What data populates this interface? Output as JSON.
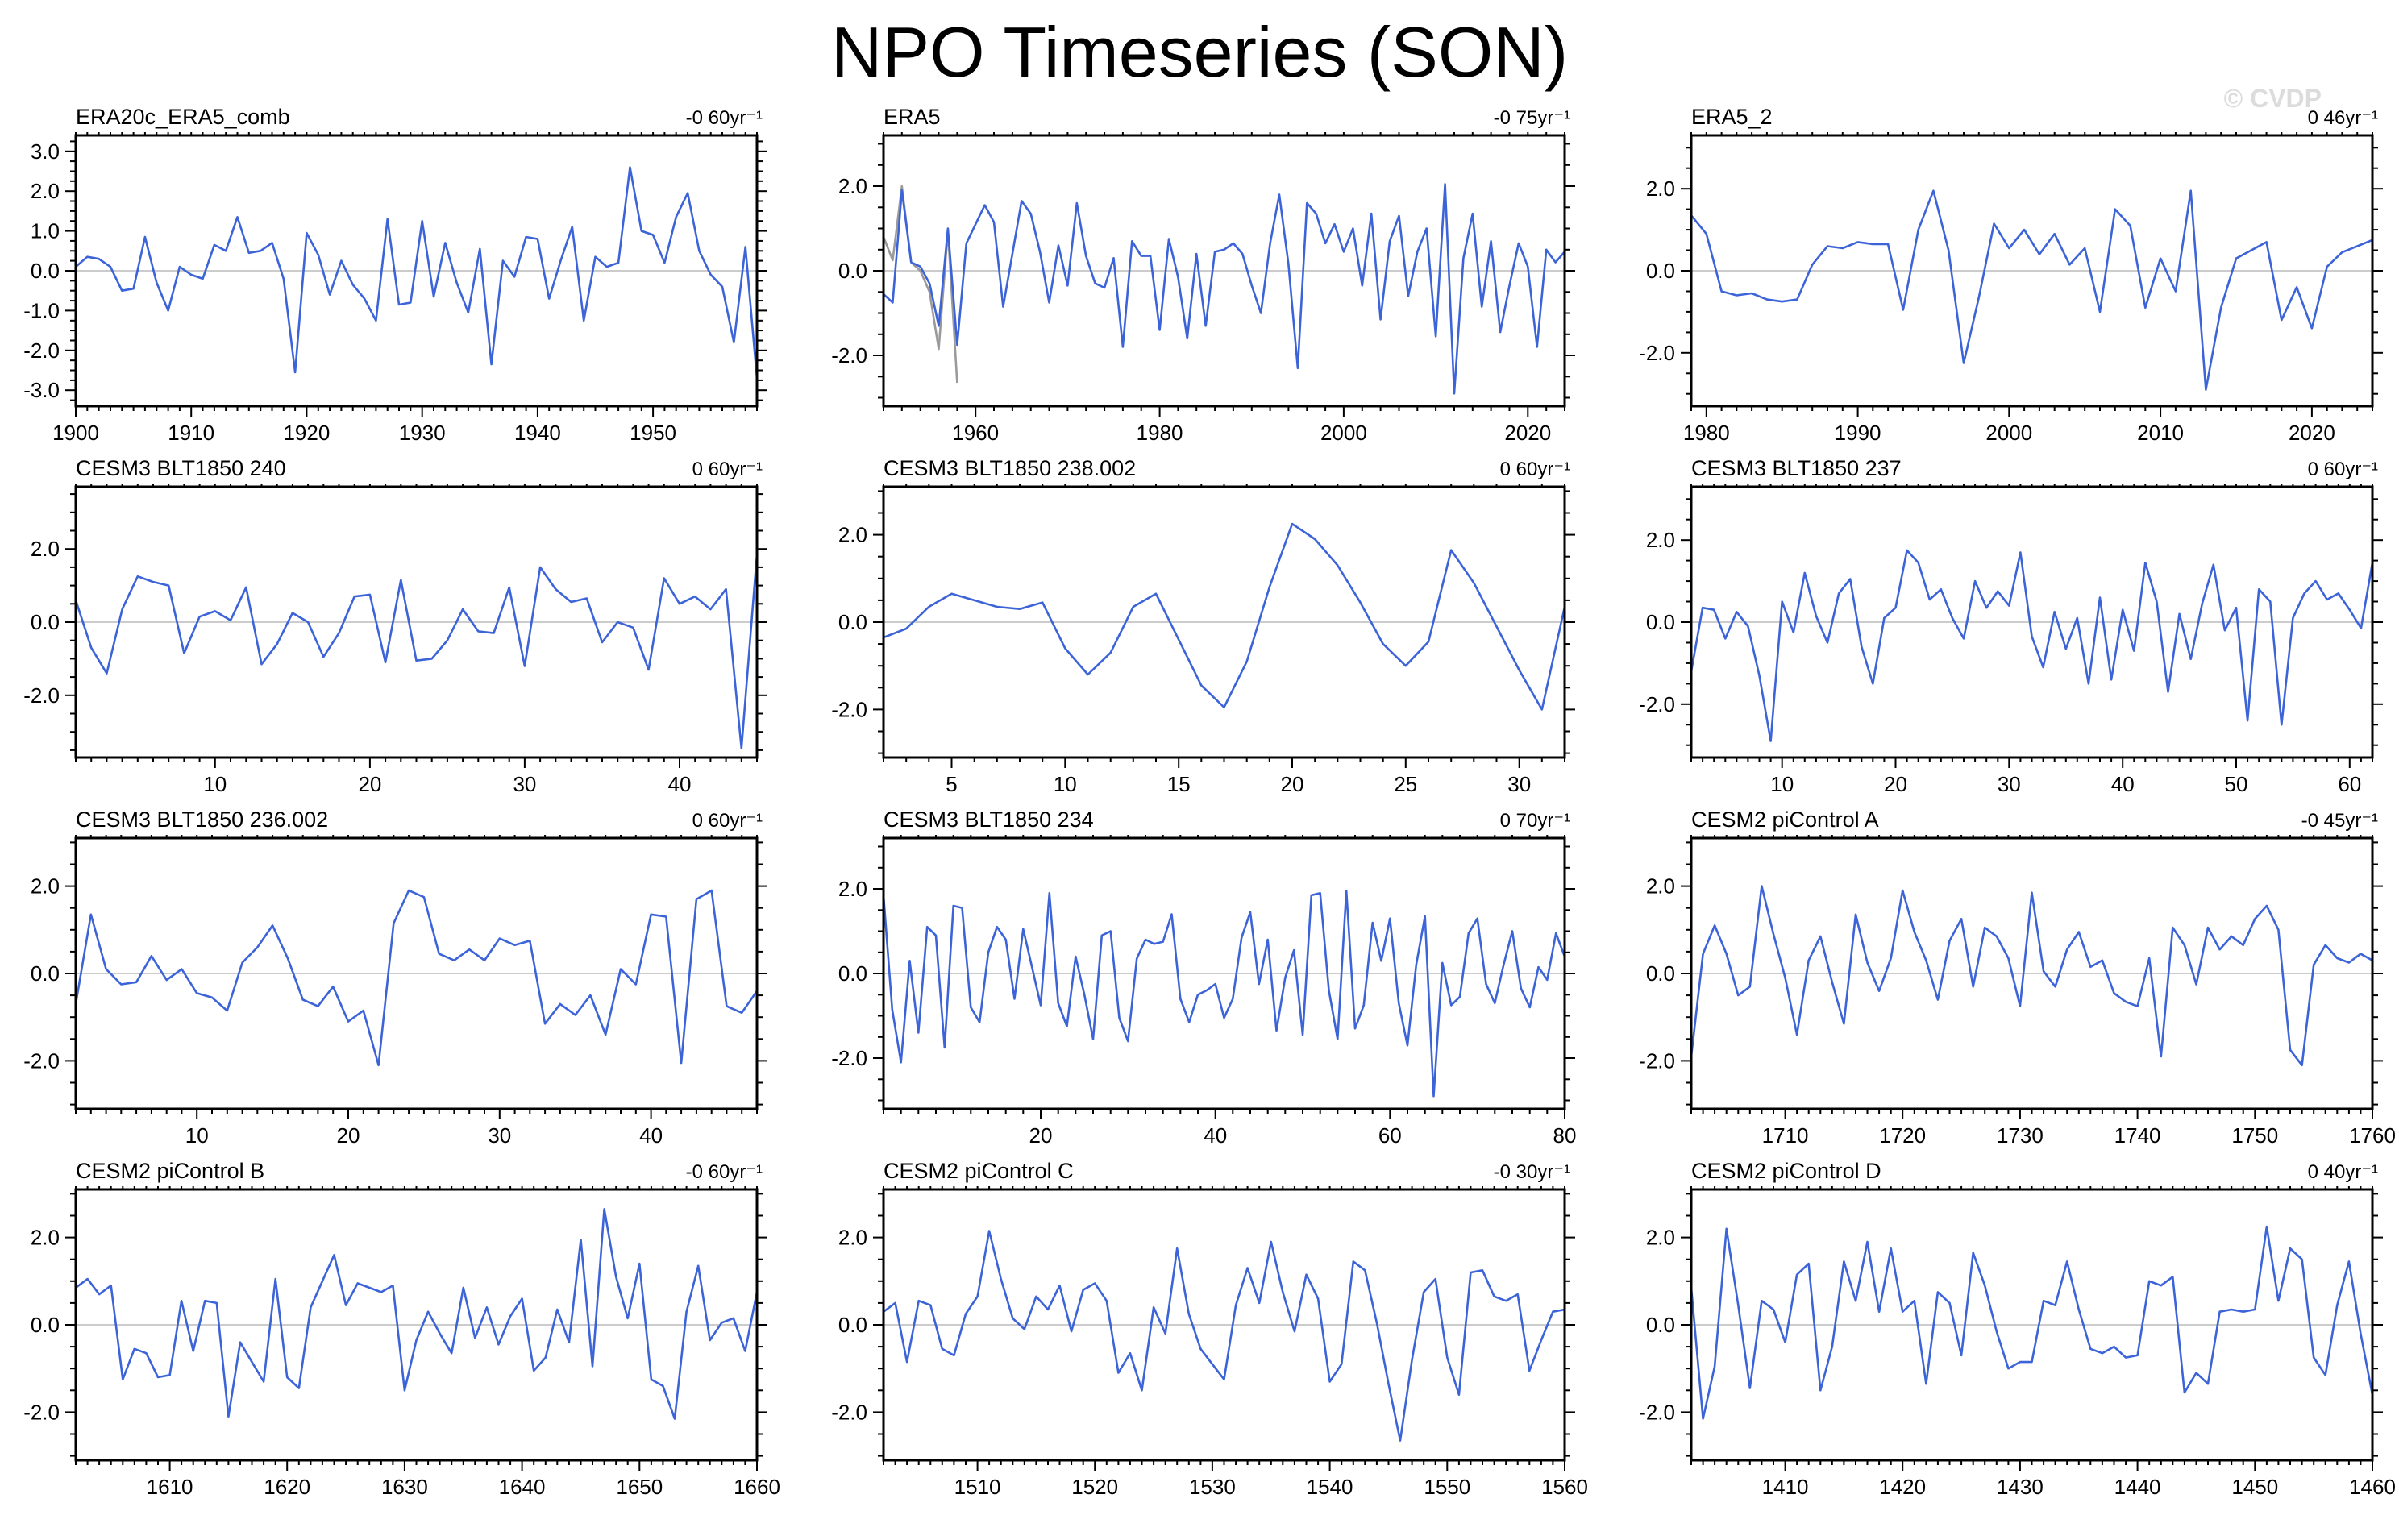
{
  "page": {
    "title": "NPO Timeseries (SON)",
    "copyright": "© CVDP"
  },
  "chart_data": {
    "type": "line",
    "title": "NPO Timeseries (SON)",
    "layout": {
      "rows": 4,
      "cols": 3,
      "grid": false,
      "legend": "none",
      "line_color": "#3c64d8",
      "secondary_line_color": "#9a9a9a",
      "zero_line_color": "#cccccc",
      "frame_color": "#000000",
      "tick_label_color": "#000000"
    },
    "panels": [
      {
        "title": "ERA20c_ERA5_comb",
        "trend_label": "-0 60yr⁻¹",
        "x_start": 1900,
        "x_major": 10,
        "x_minor": 1,
        "xticks": [
          1900,
          1910,
          1920,
          1930,
          1940,
          1950
        ],
        "ylim": [
          -3.4,
          3.4
        ],
        "y_major": 1.0,
        "y_minor": 0.25,
        "yticks": [
          -3.0,
          -2.0,
          -1.0,
          0.0,
          1.0,
          2.0,
          3.0
        ],
        "values": [
          0.1,
          0.35,
          0.3,
          0.1,
          -0.5,
          -0.45,
          0.85,
          -0.3,
          -1.0,
          0.1,
          -0.1,
          -0.2,
          0.65,
          0.5,
          1.35,
          0.45,
          0.5,
          0.7,
          -0.2,
          -2.55,
          0.95,
          0.4,
          -0.6,
          0.25,
          -0.35,
          -0.7,
          -1.25,
          1.3,
          -0.85,
          -0.8,
          1.25,
          -0.65,
          0.7,
          -0.3,
          -1.05,
          0.55,
          -2.35,
          0.25,
          -0.15,
          0.85,
          0.8,
          -0.7,
          0.25,
          1.1,
          -1.25,
          0.35,
          0.1,
          0.2,
          2.6,
          1.0,
          0.9,
          0.2,
          1.35,
          1.95,
          0.5,
          -0.1,
          -0.4,
          -1.8,
          0.6,
          -2.7
        ]
      },
      {
        "title": "ERA5",
        "trend_label": "-0 75yr⁻¹",
        "x_start": 1950,
        "x_major": 20,
        "x_minor": 2,
        "xticks": [
          1960,
          1980,
          2000,
          2020
        ],
        "ylim": [
          -3.2,
          3.2
        ],
        "y_major": 2.0,
        "y_minor": 0.5,
        "yticks": [
          -2.0,
          0.0,
          2.0
        ],
        "values": [
          -0.55,
          -0.75,
          1.9,
          0.2,
          0.1,
          -0.3,
          -1.3,
          1.0,
          -1.75,
          0.65,
          1.1,
          1.55,
          1.15,
          -0.85,
          0.4,
          1.65,
          1.35,
          0.45,
          -0.75,
          0.6,
          -0.35,
          1.6,
          0.35,
          -0.3,
          -0.4,
          0.3,
          -1.8,
          0.7,
          0.35,
          0.35,
          -1.4,
          0.75,
          -0.15,
          -1.6,
          0.4,
          -1.3,
          0.45,
          0.5,
          0.65,
          0.4,
          -0.35,
          -1.0,
          0.65,
          1.8,
          0.15,
          -2.3,
          1.6,
          1.35,
          0.65,
          1.1,
          0.45,
          1.0,
          -0.35,
          1.35,
          -1.15,
          0.7,
          1.3,
          -0.6,
          0.45,
          1.0,
          -1.55,
          2.05,
          -2.9,
          0.3,
          1.35,
          -0.85,
          0.7,
          -1.45,
          -0.35,
          0.65,
          0.1,
          -1.8,
          0.5,
          0.2,
          0.45
        ],
        "secondary": {
          "name": "early-record-gray",
          "x_start": 1950,
          "values": [
            0.8,
            0.25,
            2.0,
            0.2,
            0.0,
            -0.5,
            -1.85,
            0.95,
            -2.65
          ]
        }
      },
      {
        "title": "ERA5_2",
        "trend_label": "0 46yr⁻¹",
        "x_start": 1979,
        "x_major": 10,
        "x_minor": 1,
        "xticks": [
          1980,
          1990,
          2000,
          2010,
          2020
        ],
        "ylim": [
          -3.3,
          3.3
        ],
        "y_major": 2.0,
        "y_minor": 0.5,
        "yticks": [
          -2.0,
          0.0,
          2.0
        ],
        "values": [
          1.35,
          0.9,
          -0.5,
          -0.6,
          -0.55,
          -0.7,
          -0.75,
          -0.7,
          0.15,
          0.6,
          0.55,
          0.7,
          0.65,
          0.65,
          -0.95,
          1.0,
          1.95,
          0.5,
          -2.25,
          -0.65,
          1.15,
          0.55,
          1.0,
          0.4,
          0.9,
          0.15,
          0.55,
          -1.0,
          1.5,
          1.1,
          -0.9,
          0.3,
          -0.5,
          1.95,
          -2.9,
          -0.9,
          0.3,
          0.5,
          0.7,
          -1.2,
          -0.4,
          -1.4,
          0.1,
          0.45,
          0.6,
          0.75
        ]
      },
      {
        "title": "CESM3 BLT1850 240",
        "trend_label": "0 60yr⁻¹",
        "x_start": 1,
        "x_major": 10,
        "x_minor": 1,
        "xticks": [
          10,
          20,
          30,
          40
        ],
        "ylim": [
          -3.7,
          3.7
        ],
        "y_major": 2.0,
        "y_minor": 0.5,
        "yticks": [
          -2.0,
          0.0,
          2.0
        ],
        "values": [
          0.6,
          -0.7,
          -1.4,
          0.35,
          1.25,
          1.1,
          1.0,
          -0.85,
          0.15,
          0.3,
          0.05,
          0.95,
          -1.15,
          -0.6,
          0.25,
          0.0,
          -0.95,
          -0.3,
          0.7,
          0.75,
          -1.1,
          1.15,
          -1.05,
          -1.0,
          -0.5,
          0.35,
          -0.25,
          -0.3,
          0.95,
          -1.2,
          1.5,
          0.9,
          0.55,
          0.65,
          -0.55,
          0.0,
          -0.15,
          -1.3,
          1.2,
          0.5,
          0.7,
          0.35,
          0.9,
          -3.45,
          1.85
        ]
      },
      {
        "title": "CESM3 BLT1850 238.002",
        "trend_label": "0 60yr⁻¹",
        "x_start": 2,
        "x_major": 5,
        "x_minor": 1,
        "xticks": [
          5,
          10,
          15,
          20,
          25,
          30
        ],
        "ylim": [
          -3.1,
          3.1
        ],
        "y_major": 2.0,
        "y_minor": 0.5,
        "yticks": [
          -2.0,
          0.0,
          2.0
        ],
        "values": [
          -0.35,
          -0.15,
          0.35,
          0.65,
          0.5,
          0.35,
          0.3,
          0.45,
          -0.6,
          -1.2,
          -0.7,
          0.35,
          0.65,
          -0.4,
          -1.45,
          -1.95,
          -0.9,
          0.8,
          2.25,
          1.9,
          1.3,
          0.45,
          -0.5,
          -1.0,
          -0.45,
          1.65,
          0.9,
          -0.1,
          -1.1,
          -2.0,
          0.35
        ]
      },
      {
        "title": "CESM3 BLT1850 237",
        "trend_label": "0 60yr⁻¹",
        "x_start": 2,
        "x_major": 10,
        "x_minor": 1,
        "xticks": [
          10,
          20,
          30,
          40,
          50,
          60
        ],
        "ylim": [
          -3.3,
          3.3
        ],
        "y_major": 2.0,
        "y_minor": 0.5,
        "yticks": [
          -2.0,
          0.0,
          2.0
        ],
        "values": [
          -1.2,
          0.35,
          0.3,
          -0.4,
          0.25,
          -0.1,
          -1.3,
          -2.9,
          0.5,
          -0.25,
          1.2,
          0.15,
          -0.5,
          0.7,
          1.05,
          -0.6,
          -1.5,
          0.1,
          0.35,
          1.75,
          1.45,
          0.55,
          0.8,
          0.1,
          -0.4,
          1.0,
          0.35,
          0.75,
          0.4,
          1.7,
          -0.35,
          -1.1,
          0.25,
          -0.65,
          0.1,
          -1.5,
          0.6,
          -1.4,
          0.3,
          -0.7,
          1.45,
          0.5,
          -1.7,
          0.2,
          -0.9,
          0.45,
          1.4,
          -0.2,
          0.35,
          -2.4,
          0.8,
          0.5,
          -2.5,
          0.1,
          0.7,
          1.0,
          0.55,
          0.7,
          0.3,
          -0.15,
          1.45
        ]
      },
      {
        "title": "CESM3 BLT1850 236.002",
        "trend_label": "0 60yr⁻¹",
        "x_start": 2,
        "x_major": 10,
        "x_minor": 1,
        "xticks": [
          10,
          20,
          30,
          40
        ],
        "ylim": [
          -3.1,
          3.1
        ],
        "y_major": 2.0,
        "y_minor": 0.5,
        "yticks": [
          -2.0,
          0.0,
          2.0
        ],
        "values": [
          -0.7,
          1.35,
          0.1,
          -0.25,
          -0.2,
          0.4,
          -0.15,
          0.1,
          -0.45,
          -0.55,
          -0.85,
          0.25,
          0.6,
          1.1,
          0.35,
          -0.6,
          -0.75,
          -0.3,
          -1.1,
          -0.85,
          -2.1,
          1.15,
          1.9,
          1.75,
          0.45,
          0.3,
          0.55,
          0.3,
          0.8,
          0.65,
          0.75,
          -1.15,
          -0.7,
          -0.95,
          -0.5,
          -1.4,
          0.1,
          -0.25,
          1.35,
          1.3,
          -2.05,
          1.7,
          1.9,
          -0.75,
          -0.9,
          -0.4
        ]
      },
      {
        "title": "CESM3 BLT1850 234",
        "trend_label": "0 70yr⁻¹",
        "x_start": 2,
        "x_major": 20,
        "x_minor": 2,
        "xticks": [
          20,
          40,
          60,
          80
        ],
        "ylim": [
          -3.2,
          3.2
        ],
        "y_major": 2.0,
        "y_minor": 0.5,
        "yticks": [
          -2.0,
          0.0,
          2.0
        ],
        "values": [
          1.85,
          -0.85,
          -2.1,
          0.3,
          -1.4,
          1.1,
          0.9,
          -1.75,
          1.6,
          1.55,
          -0.8,
          -1.15,
          0.5,
          1.1,
          0.8,
          -0.6,
          1.05,
          0.15,
          -0.75,
          1.9,
          -0.7,
          -1.25,
          0.4,
          -0.5,
          -1.55,
          0.9,
          1.0,
          -1.05,
          -1.6,
          0.35,
          0.8,
          0.7,
          0.75,
          1.4,
          -0.6,
          -1.15,
          -0.5,
          -0.4,
          -0.25,
          -1.05,
          -0.6,
          0.85,
          1.45,
          -0.25,
          0.8,
          -1.35,
          -0.1,
          0.55,
          -1.45,
          1.85,
          1.9,
          -0.4,
          -1.55,
          1.95,
          -1.3,
          -0.75,
          1.2,
          0.3,
          1.3,
          -0.7,
          -1.7,
          0.2,
          1.35,
          -2.9,
          0.25,
          -0.75,
          -0.55,
          0.95,
          1.3,
          -0.25,
          -0.7,
          0.2,
          1.0,
          -0.35,
          -0.8,
          0.15,
          -0.15,
          0.95,
          0.4
        ]
      },
      {
        "title": "CESM2 piControl A",
        "trend_label": "-0 45yr⁻¹",
        "x_start": 1702,
        "x_major": 10,
        "x_minor": 1,
        "xticks": [
          1710,
          1720,
          1730,
          1740,
          1750,
          1760
        ],
        "ylim": [
          -3.1,
          3.1
        ],
        "y_major": 2.0,
        "y_minor": 0.5,
        "yticks": [
          -2.0,
          0.0,
          2.0
        ],
        "values": [
          -1.9,
          0.45,
          1.1,
          0.45,
          -0.5,
          -0.3,
          2.0,
          0.9,
          -0.1,
          -1.4,
          0.3,
          0.85,
          -0.2,
          -1.15,
          1.35,
          0.25,
          -0.4,
          0.35,
          1.9,
          0.95,
          0.3,
          -0.6,
          0.75,
          1.25,
          -0.3,
          1.05,
          0.85,
          0.35,
          -0.75,
          1.85,
          0.05,
          -0.3,
          0.55,
          0.95,
          0.15,
          0.3,
          -0.45,
          -0.65,
          -0.75,
          0.35,
          -1.9,
          1.05,
          0.65,
          -0.25,
          1.05,
          0.55,
          0.85,
          0.65,
          1.25,
          1.55,
          1.0,
          -1.75,
          -2.1,
          0.2,
          0.65,
          0.35,
          0.25,
          0.45,
          0.3
        ]
      },
      {
        "title": "CESM2 piControl B",
        "trend_label": "-0 60yr⁻¹",
        "x_start": 1602,
        "x_major": 10,
        "x_minor": 1,
        "xticks": [
          1610,
          1620,
          1630,
          1640,
          1650,
          1660
        ],
        "ylim": [
          -3.1,
          3.1
        ],
        "y_major": 2.0,
        "y_minor": 0.5,
        "yticks": [
          -2.0,
          0.0,
          2.0
        ],
        "values": [
          0.85,
          1.05,
          0.7,
          0.9,
          -1.25,
          -0.55,
          -0.65,
          -1.2,
          -1.15,
          0.55,
          -0.6,
          0.55,
          0.5,
          -2.1,
          -0.4,
          -0.85,
          -1.3,
          1.05,
          -1.2,
          -1.45,
          0.4,
          1.0,
          1.6,
          0.45,
          0.95,
          0.85,
          0.75,
          0.9,
          -1.5,
          -0.35,
          0.3,
          -0.2,
          -0.65,
          0.85,
          -0.3,
          0.4,
          -0.45,
          0.2,
          0.6,
          -1.05,
          -0.75,
          0.35,
          -0.4,
          1.95,
          -0.95,
          2.65,
          1.1,
          0.15,
          1.4,
          -1.25,
          -1.4,
          -2.15,
          0.3,
          1.35,
          -0.35,
          0.05,
          0.15,
          -0.6,
          0.75
        ]
      },
      {
        "title": "CESM2 piControl C",
        "trend_label": "-0 30yr⁻¹",
        "x_start": 1502,
        "x_major": 10,
        "x_minor": 1,
        "xticks": [
          1510,
          1520,
          1530,
          1540,
          1550,
          1560
        ],
        "ylim": [
          -3.1,
          3.1
        ],
        "y_major": 2.0,
        "y_minor": 0.5,
        "yticks": [
          -2.0,
          0.0,
          2.0
        ],
        "values": [
          0.3,
          0.5,
          -0.85,
          0.55,
          0.45,
          -0.55,
          -0.7,
          0.25,
          0.65,
          2.15,
          1.05,
          0.15,
          -0.1,
          0.65,
          0.35,
          0.9,
          -0.15,
          0.8,
          0.95,
          0.55,
          -1.1,
          -0.65,
          -1.5,
          0.4,
          -0.2,
          1.75,
          0.25,
          -0.55,
          -0.9,
          -1.25,
          0.45,
          1.3,
          0.5,
          1.9,
          0.75,
          -0.15,
          1.15,
          0.6,
          -1.3,
          -0.9,
          1.45,
          1.25,
          0.05,
          -1.35,
          -2.65,
          -0.8,
          0.75,
          1.05,
          -0.75,
          -1.6,
          1.2,
          1.25,
          0.65,
          0.55,
          0.7,
          -1.05,
          -0.35,
          0.3,
          0.35
        ]
      },
      {
        "title": "CESM2 piControl D",
        "trend_label": "0 40yr⁻¹",
        "x_start": 1402,
        "x_major": 10,
        "x_minor": 1,
        "xticks": [
          1410,
          1420,
          1430,
          1440,
          1450,
          1460
        ],
        "ylim": [
          -3.1,
          3.1
        ],
        "y_major": 2.0,
        "y_minor": 0.5,
        "yticks": [
          -2.0,
          0.0,
          2.0
        ],
        "values": [
          0.85,
          -2.15,
          -0.95,
          2.2,
          0.45,
          -1.45,
          0.55,
          0.35,
          -0.4,
          1.15,
          1.4,
          -1.5,
          -0.5,
          1.45,
          0.55,
          1.9,
          0.3,
          1.75,
          0.3,
          0.55,
          -1.35,
          0.75,
          0.5,
          -0.7,
          1.65,
          0.9,
          -0.15,
          -1.0,
          -0.85,
          -0.85,
          0.55,
          0.45,
          1.45,
          0.35,
          -0.55,
          -0.65,
          -0.5,
          -0.75,
          -0.7,
          1.0,
          0.9,
          1.1,
          -1.55,
          -1.1,
          -1.35,
          0.3,
          0.35,
          0.3,
          0.35,
          2.25,
          0.55,
          1.75,
          1.5,
          -0.75,
          -1.15,
          0.45,
          1.45,
          -0.2,
          -1.6
        ]
      }
    ]
  }
}
